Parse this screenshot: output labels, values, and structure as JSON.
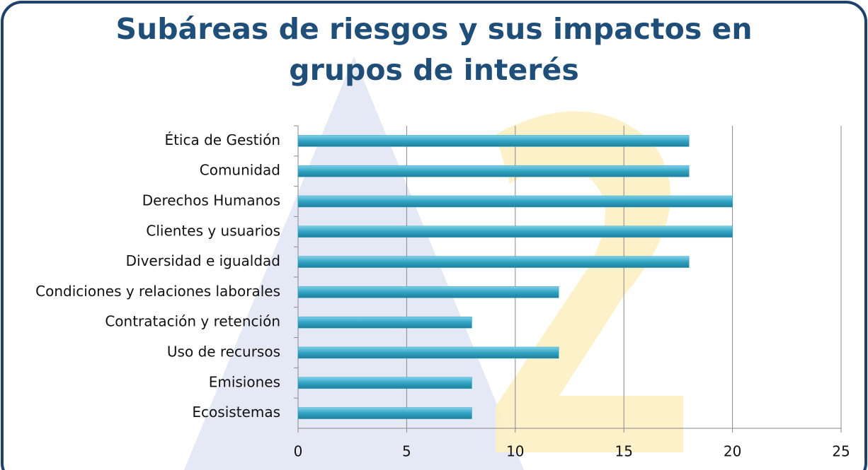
{
  "chart_data": {
    "type": "hbar",
    "title": "Subáreas de riesgos y sus impactos en grupos de interés",
    "categories": [
      "Ética de Gestión",
      "Comunidad",
      "Derechos Humanos",
      "Clientes y usuarios",
      "Diversidad e igualdad",
      "Condiciones y relaciones laborales",
      "Contratación y retención",
      "Uso de recursos",
      "Emisiones",
      "Ecosistemas"
    ],
    "values": [
      18,
      18,
      20,
      20,
      18,
      12,
      8,
      12,
      8,
      8
    ],
    "color": "#31a3c4",
    "xlim": [
      0,
      25
    ],
    "xticks": [
      0,
      5,
      10,
      15,
      20,
      25
    ],
    "grid": true
  }
}
